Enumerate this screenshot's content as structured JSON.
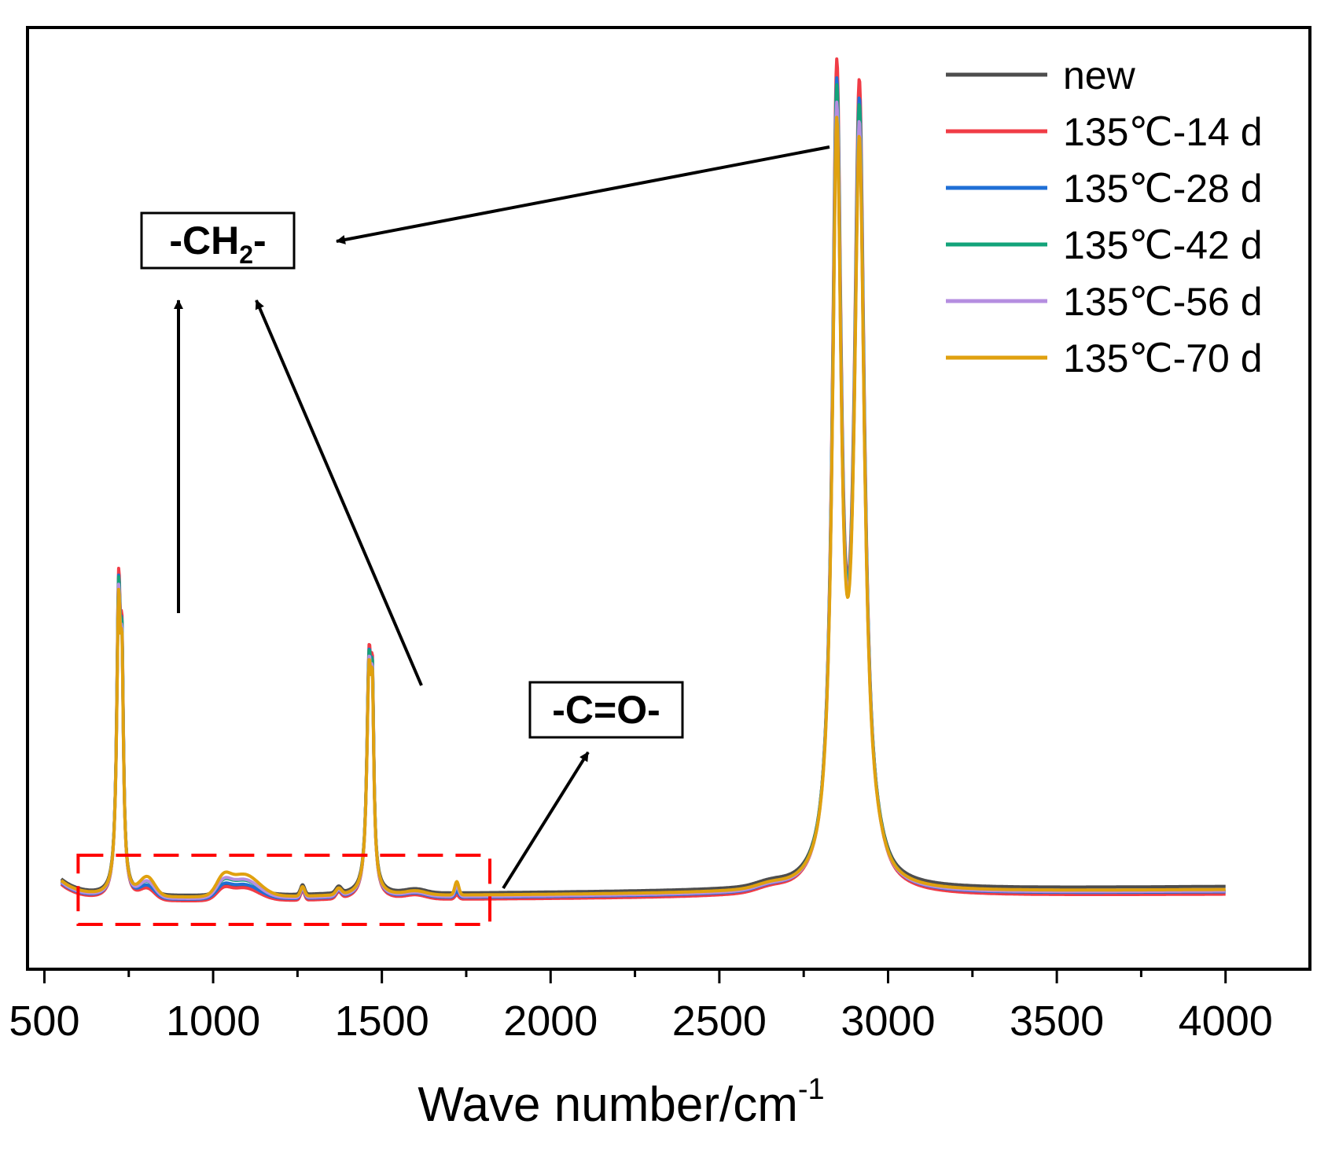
{
  "chart_data": {
    "type": "line",
    "title": "",
    "xlabel": "Wave number/cm",
    "xlabel_superscript": "-1",
    "ylabel": "",
    "xlim": [
      450,
      4250
    ],
    "ylim": [
      0,
      100
    ],
    "y_ticks_shown": false,
    "x_ticks": [
      500,
      1000,
      1500,
      2000,
      2500,
      3000,
      3500,
      4000
    ],
    "legend_position": "top-right",
    "series": [
      {
        "name": "new",
        "color": "#4d4d4d",
        "baseline": 3.9,
        "tail": 5.2,
        "bump": 0.55,
        "peak_scale": 0.935,
        "p1720": 0.0
      },
      {
        "name": "135℃-14 d",
        "color": "#f03c46",
        "baseline": 3.2,
        "tail": 4.2,
        "bump": 0.75,
        "peak_scale": 1.0,
        "p1720": 0.4
      },
      {
        "name": "135℃-28 d",
        "color": "#1f6fd6",
        "baseline": 3.4,
        "tail": 4.5,
        "bump": 0.85,
        "peak_scale": 0.975,
        "p1720": 0.6
      },
      {
        "name": "135℃-42 d",
        "color": "#13a37a",
        "baseline": 3.6,
        "tail": 4.7,
        "bump": 1.0,
        "peak_scale": 0.965,
        "p1720": 0.8
      },
      {
        "name": "135℃-56 d",
        "color": "#b58ee0",
        "baseline": 3.5,
        "tail": 4.6,
        "bump": 1.1,
        "peak_scale": 0.945,
        "p1720": 1.0
      },
      {
        "name": "135℃-70 d",
        "color": "#e0a10f",
        "baseline": 3.7,
        "tail": 4.8,
        "bump": 1.3,
        "peak_scale": 0.925,
        "p1720": 1.3
      }
    ],
    "peaks": [
      {
        "x": 720,
        "height": 37.5,
        "width": 7
      },
      {
        "x": 730,
        "height": 24.0,
        "width": 5
      },
      {
        "x": 1462,
        "height": 28.5,
        "width": 8
      },
      {
        "x": 1472,
        "height": 20.0,
        "width": 5
      },
      {
        "x": 2848,
        "height": 100.0,
        "width": 16
      },
      {
        "x": 2915,
        "height": 98.5,
        "width": 18
      }
    ],
    "annotations": [
      {
        "label_main": "-CH",
        "label_sub": "2",
        "label_tail": "-",
        "target_x": [
          720,
          1462,
          2848
        ]
      },
      {
        "label_main": "-C=O-",
        "target_x": [
          1720
        ]
      }
    ],
    "highlight_region": {
      "x_range": [
        600,
        1820
      ],
      "color": "#ff0000",
      "style": "dashed"
    }
  }
}
